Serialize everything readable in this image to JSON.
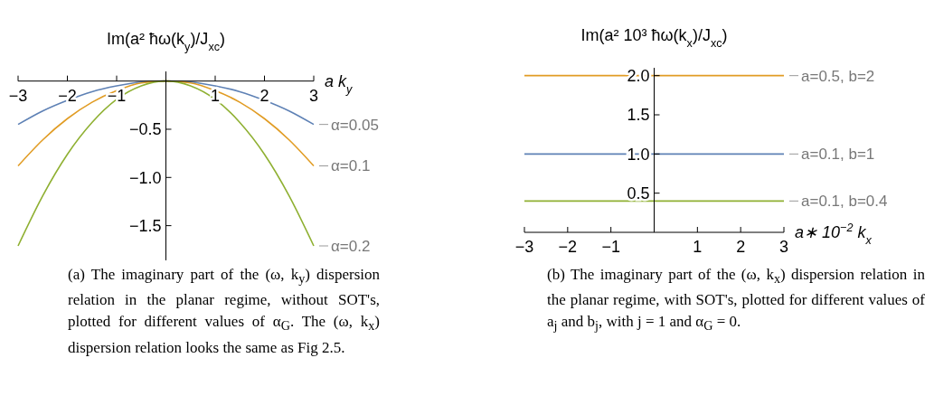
{
  "chart_data": [
    {
      "type": "line",
      "ylabel": "Im(a² ħω(k$_{y}$)/J$_{xc}$)",
      "xlabel": "a k$_{y}$",
      "x": [
        -3,
        -2.5,
        -2,
        -1.5,
        -1,
        -0.5,
        0,
        0.5,
        1,
        1.5,
        2,
        2.5,
        3
      ],
      "series": [
        {
          "name": "α=0.05",
          "color": "#5e81b5",
          "values": [
            -0.45,
            -0.31,
            -0.2,
            -0.11,
            -0.05,
            -0.01,
            0,
            -0.01,
            -0.05,
            -0.11,
            -0.2,
            -0.31,
            -0.45
          ]
        },
        {
          "name": "α=0.1",
          "color": "#e19c24",
          "values": [
            -0.88,
            -0.61,
            -0.39,
            -0.22,
            -0.1,
            -0.02,
            0,
            -0.02,
            -0.1,
            -0.22,
            -0.39,
            -0.61,
            -0.88
          ]
        },
        {
          "name": "α=0.2",
          "color": "#8fb032",
          "values": [
            -1.71,
            -1.19,
            -0.76,
            -0.43,
            -0.19,
            -0.05,
            0,
            -0.05,
            -0.19,
            -0.43,
            -0.76,
            -1.19,
            -1.71
          ]
        }
      ],
      "xlim": [
        -3,
        3
      ],
      "ylim": [
        -1.86,
        0.1
      ],
      "xticks": [
        {
          "value": -3,
          "label": "−3"
        },
        {
          "value": -2,
          "label": "−2"
        },
        {
          "value": -1,
          "label": "−1"
        },
        1,
        2,
        3
      ],
      "yticks": [
        {
          "value": -0.5,
          "label": "−0.5"
        },
        {
          "value": -1,
          "label": "−1.0"
        },
        {
          "value": -1.5,
          "label": "−1.5"
        }
      ],
      "grid": false,
      "marker": "none",
      "annotations": [
        "(a) The imaginary part of the (ω, k$_{y}$) dispersion relation in the planar regime, without SOT's, plotted for different values of α$_{G}$. The (ω, k$_{x}$) dispersion relation looks the same as Fig 2.5."
      ]
    },
    {
      "type": "line",
      "ylabel": "Im(a² 10³ ħω(k$_{x}$)/J$_{xc}$)",
      "xlabel": "a∗ 10$^{−2}$ k$_{x}$",
      "x": [
        -3,
        3
      ],
      "series": [
        {
          "name": "a=0.5, b=2",
          "color": "#e19c24",
          "values": [
            2,
            2
          ]
        },
        {
          "name": "a=0.1, b=1",
          "color": "#5e81b5",
          "values": [
            1,
            1
          ]
        },
        {
          "name": "a=0.1, b=0.4",
          "color": "#8fb032",
          "values": [
            0.4,
            0.4
          ]
        }
      ],
      "xlim": [
        -3,
        3
      ],
      "ylim": [
        0,
        2.1
      ],
      "xticks": [
        {
          "value": -3,
          "label": "−3"
        },
        {
          "value": -2,
          "label": "−2"
        },
        {
          "value": -1,
          "label": "−1"
        },
        1,
        2,
        3
      ],
      "yticks": [
        0.5,
        {
          "value": 1,
          "label": "1.0"
        },
        1.5,
        {
          "value": 2,
          "label": "2.0"
        }
      ],
      "grid": false,
      "marker": "none",
      "annotations": [
        "(b) The imaginary part of the (ω, k$_{x}$) dispersion relation in the planar regime, with SOT's, plotted for different values of a$_{j}$ and b$_{j}$, with j = 1 and α$_{G}$ = 0."
      ]
    }
  ]
}
